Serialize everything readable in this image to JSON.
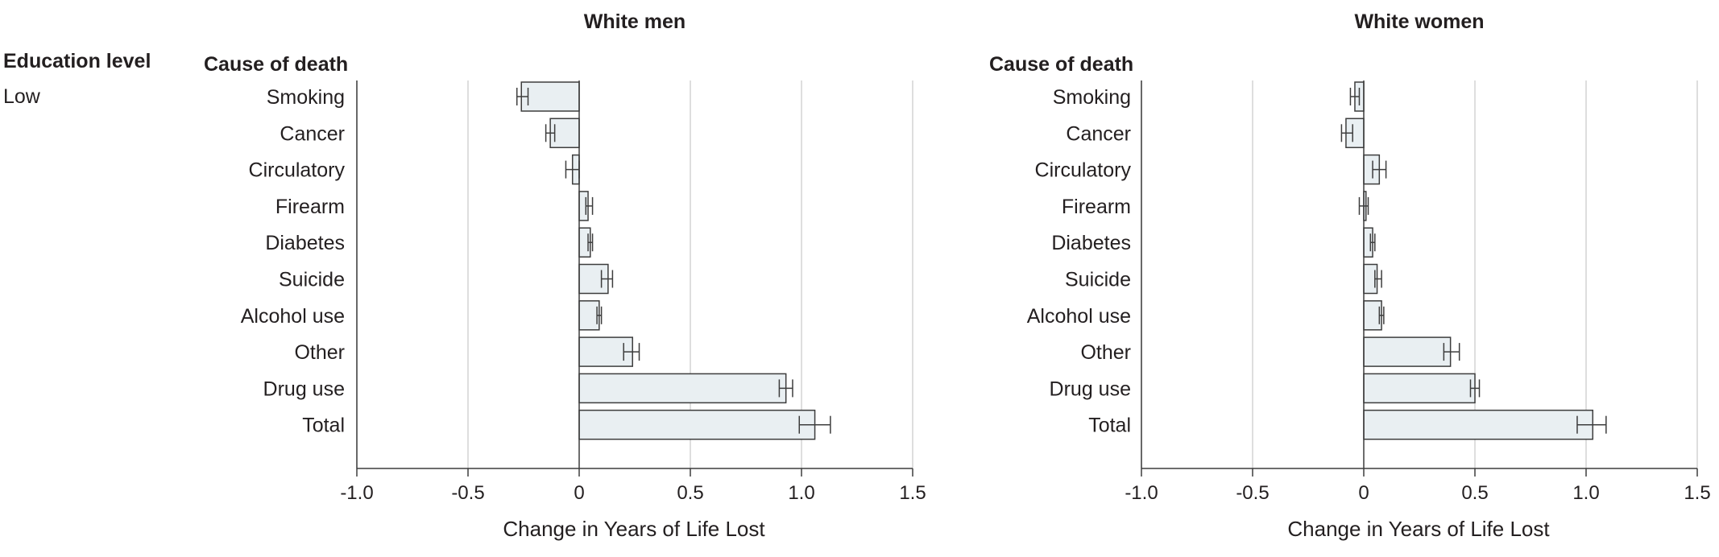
{
  "education": {
    "header": "Education level",
    "value": "Low"
  },
  "colors": {
    "bar_fill": "#e9eff2",
    "bar_stroke": "#3d3d3d",
    "grid": "#d3d3d3",
    "axis": "#3d3d3d"
  },
  "chart_data": [
    {
      "type": "bar",
      "orientation": "horizontal",
      "title": "White men",
      "category_header": "Cause of death",
      "xlabel": "Change in Years of Life Lost",
      "xlim": [
        -1.0,
        1.5
      ],
      "xticks": [
        -1.0,
        -0.5,
        0,
        0.5,
        1.0,
        1.5
      ],
      "xtick_labels": [
        "-1.0",
        "-0.5",
        "0",
        "0.5",
        "1.0",
        "1.5"
      ],
      "grid": true,
      "categories": [
        "Smoking",
        "Cancer",
        "Circulatory",
        "Firearm",
        "Diabetes",
        "Suicide",
        "Alcohol use",
        "Other",
        "Drug use",
        "Total"
      ],
      "values": [
        -0.26,
        -0.13,
        -0.03,
        0.04,
        0.05,
        0.13,
        0.09,
        0.24,
        0.93,
        1.06
      ],
      "ci_low": [
        -0.28,
        -0.15,
        -0.06,
        0.03,
        0.04,
        0.1,
        0.08,
        0.2,
        0.9,
        0.99
      ],
      "ci_high": [
        -0.23,
        -0.11,
        0.0,
        0.06,
        0.06,
        0.15,
        0.1,
        0.27,
        0.96,
        1.13
      ]
    },
    {
      "type": "bar",
      "orientation": "horizontal",
      "title": "White women",
      "category_header": "Cause of death",
      "xlabel": "Change in Years of Life Lost",
      "xlim": [
        -1.0,
        1.5
      ],
      "xticks": [
        -1.0,
        -0.5,
        0,
        0.5,
        1.0,
        1.5
      ],
      "xtick_labels": [
        "-1.0",
        "-0.5",
        "0",
        "0.5",
        "1.0",
        "1.5"
      ],
      "grid": true,
      "categories": [
        "Smoking",
        "Cancer",
        "Circulatory",
        "Firearm",
        "Diabetes",
        "Suicide",
        "Alcohol use",
        "Other",
        "Drug use",
        "Total"
      ],
      "values": [
        -0.04,
        -0.08,
        0.07,
        0.01,
        0.04,
        0.06,
        0.08,
        0.39,
        0.5,
        1.03
      ],
      "ci_low": [
        -0.06,
        -0.1,
        0.04,
        -0.02,
        0.03,
        0.05,
        0.07,
        0.36,
        0.48,
        0.96
      ],
      "ci_high": [
        -0.02,
        -0.05,
        0.1,
        0.02,
        0.05,
        0.08,
        0.09,
        0.43,
        0.52,
        1.09
      ]
    }
  ]
}
